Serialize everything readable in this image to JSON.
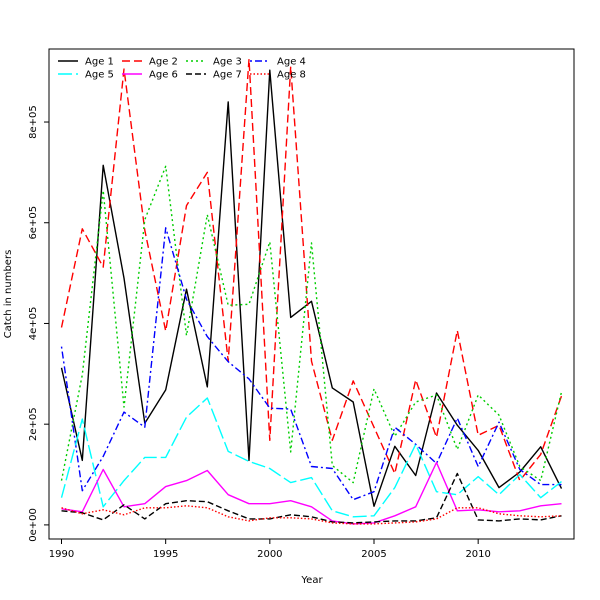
{
  "chart_data": {
    "type": "line",
    "title": "",
    "xlabel": "Year",
    "ylabel": "Catch in numbers",
    "xlim": [
      1989.4,
      2014.6
    ],
    "ylim": [
      -28000,
      945000
    ],
    "x_ticks": [
      1990,
      1995,
      2000,
      2005,
      2010
    ],
    "x_tick_labels": [
      "1990",
      "1995",
      "2000",
      "2005",
      "2010"
    ],
    "y_ticks": [
      0,
      200000,
      400000,
      600000,
      800000
    ],
    "y_tick_labels": [
      "0e+00",
      "2e+05",
      "4e+05",
      "6e+05",
      "8e+05"
    ],
    "grid": false,
    "legend_position": "top-left",
    "x": [
      1990,
      1991,
      1992,
      1993,
      1994,
      1995,
      1996,
      1997,
      1998,
      1999,
      2000,
      2001,
      2002,
      2003,
      2004,
      2005,
      2006,
      2007,
      2008,
      2009,
      2010,
      2011,
      2012,
      2013,
      2014
    ],
    "series": [
      {
        "name": "Age 1",
        "color": "#000000",
        "dash": "solid",
        "values": [
          312000,
          128000,
          714000,
          490000,
          202000,
          268000,
          468000,
          274000,
          840000,
          128000,
          903000,
          412000,
          444000,
          272000,
          244000,
          37000,
          156000,
          98000,
          262000,
          198000,
          148000,
          74000,
          105000,
          155000,
          72000
        ]
      },
      {
        "name": "Age 2",
        "color": "#ff0000",
        "dash": "dashed",
        "values": [
          392000,
          588000,
          512000,
          905000,
          585000,
          385000,
          634000,
          700000,
          325000,
          925000,
          168000,
          910000,
          325000,
          168000,
          286000,
          194000,
          102000,
          288000,
          174000,
          386000,
          178000,
          198000,
          88000,
          140000,
          256000
        ]
      },
      {
        "name": "Age 3",
        "color": "#00cd00",
        "dash": "dotted",
        "values": [
          88000,
          298000,
          664000,
          234000,
          606000,
          712000,
          376000,
          616000,
          436000,
          438000,
          562000,
          145000,
          560000,
          118000,
          84000,
          270000,
          176000,
          244000,
          258000,
          150000,
          258000,
          218000,
          116000,
          88000,
          264000
        ]
      },
      {
        "name": "Age 4",
        "color": "#0000ff",
        "dash": "dotdash",
        "values": [
          354000,
          68000,
          136000,
          224000,
          194000,
          590000,
          448000,
          374000,
          324000,
          290000,
          232000,
          230000,
          116000,
          112000,
          50000,
          66000,
          194000,
          160000,
          122000,
          212000,
          116000,
          204000,
          110000,
          80000,
          80000
        ]
      },
      {
        "name": "Age 5",
        "color": "#00ffff",
        "dash": "longdash",
        "values": [
          54000,
          210000,
          36000,
          88000,
          134000,
          134000,
          214000,
          252000,
          146000,
          126000,
          112000,
          84000,
          94000,
          28000,
          16000,
          18000,
          74000,
          160000,
          66000,
          60000,
          96000,
          60000,
          100000,
          54000,
          86000
        ]
      },
      {
        "name": "Age 6",
        "color": "#ff00ff",
        "dash": "solid",
        "values": [
          32000,
          26000,
          110000,
          36000,
          42000,
          76000,
          88000,
          108000,
          60000,
          42000,
          42000,
          48000,
          36000,
          8000,
          2000,
          4000,
          18000,
          36000,
          124000,
          28000,
          30000,
          26000,
          28000,
          38000,
          42000
        ]
      },
      {
        "name": "Age 7",
        "color": "#000000",
        "dash": "shortdash",
        "values": [
          28000,
          24000,
          10000,
          40000,
          12000,
          42000,
          48000,
          46000,
          28000,
          12000,
          12000,
          20000,
          16000,
          6000,
          4000,
          6000,
          8000,
          8000,
          14000,
          102000,
          10000,
          8000,
          12000,
          10000,
          18000
        ]
      },
      {
        "name": "Age 8",
        "color": "#ff0000",
        "dash": "finedot",
        "values": [
          34000,
          22000,
          30000,
          20000,
          34000,
          34000,
          38000,
          34000,
          16000,
          8000,
          14000,
          14000,
          12000,
          4000,
          2000,
          2000,
          4000,
          6000,
          12000,
          34000,
          34000,
          22000,
          18000,
          16000,
          18000
        ]
      }
    ]
  }
}
